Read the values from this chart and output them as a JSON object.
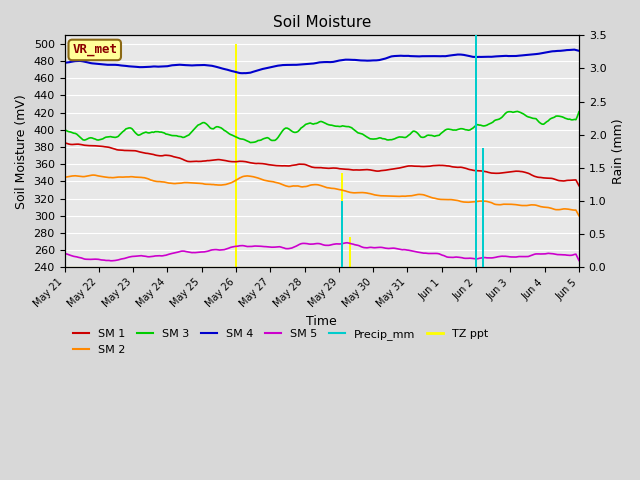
{
  "title": "Soil Moisture",
  "xlabel": "Time",
  "ylabel_left": "Soil Moisture (mV)",
  "ylabel_right": "Rain (mm)",
  "ylim_left": [
    240,
    510
  ],
  "ylim_right": [
    0.0,
    3.57143
  ],
  "yticks_left": [
    240,
    260,
    280,
    300,
    320,
    340,
    360,
    380,
    400,
    420,
    440,
    460,
    480,
    500
  ],
  "yticks_right": [
    0.0,
    0.5,
    1.0,
    1.5,
    2.0,
    2.5,
    3.0,
    3.5
  ],
  "fig_facecolor": "#d8d8d8",
  "axes_facecolor": "#e8e8e8",
  "grid_color": "#ffffff",
  "n_points": 336,
  "tick_labels": [
    "May 21",
    "May 22",
    "May 23",
    "May 24",
    "May 25",
    "May 26",
    "May 27",
    "May 28",
    "May 29",
    "May 30",
    "May 31",
    "Jun 1",
    "Jun 2",
    "Jun 3",
    "Jun 4",
    "Jun 5"
  ],
  "sm1_color": "#cc0000",
  "sm2_color": "#ff8800",
  "sm3_color": "#00cc00",
  "sm4_color": "#0000cc",
  "sm5_color": "#cc00cc",
  "precip_color": "#00cccc",
  "tzppt_color": "#ffff00",
  "annotation_text": "VR_met",
  "annotation_facecolor": "#ffff99",
  "annotation_edgecolor": "#8b6914",
  "annotation_textcolor": "#8b0000"
}
